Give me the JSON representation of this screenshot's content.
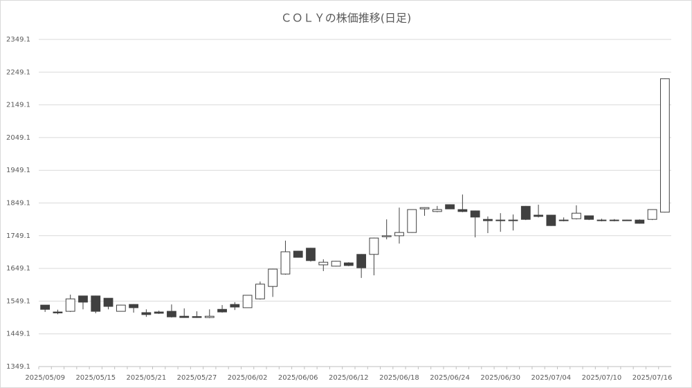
{
  "chart_data": {
    "type": "candlestick",
    "title": "ＣＯＬＹの株価推移(日足)",
    "categories": [
      "2025/05/09",
      null,
      null,
      null,
      "2025/05/15",
      null,
      null,
      null,
      "2025/05/21",
      null,
      null,
      null,
      "2025/05/27",
      null,
      null,
      null,
      "2025/06/02",
      null,
      null,
      null,
      "2025/06/06",
      null,
      null,
      null,
      "2025/06/12",
      null,
      null,
      null,
      "2025/06/18",
      null,
      null,
      null,
      "2025/06/24",
      null,
      null,
      null,
      "2025/06/30",
      null,
      null,
      null,
      "2025/07/04",
      null,
      null,
      null,
      "2025/07/10",
      null,
      null,
      null,
      "2025/07/16",
      null
    ],
    "open": [
      1537,
      1516,
      1518,
      1565,
      1565,
      1558,
      1518,
      1539,
      1514,
      1516,
      1518,
      1503,
      1502,
      1499,
      1524,
      1539,
      1529,
      1556,
      1594,
      1632,
      1702,
      1711,
      1660,
      1656,
      1666,
      1692,
      1692,
      1746,
      1749,
      1759,
      1831,
      1823,
      1844,
      1829,
      1825,
      1799,
      1797,
      1795,
      1839,
      1812,
      1812,
      1797,
      1801,
      1810,
      1797,
      1795,
      1797,
      1797,
      1799,
      1821
    ],
    "high": [
      1537,
      1523,
      1569,
      1565,
      1566,
      1558,
      1538,
      1540,
      1524,
      1520,
      1539,
      1527,
      1518,
      1524,
      1537,
      1546,
      1567,
      1609,
      1648,
      1734,
      1703,
      1712,
      1677,
      1672,
      1668,
      1693,
      1743,
      1799,
      1835,
      1830,
      1836,
      1840,
      1845,
      1875,
      1826,
      1808,
      1818,
      1814,
      1840,
      1844,
      1813,
      1805,
      1842,
      1811,
      1801,
      1800,
      1798,
      1799,
      1830,
      2230
    ],
    "low": [
      1516,
      1509,
      1516,
      1524,
      1512,
      1524,
      1518,
      1514,
      1501,
      1510,
      1499,
      1498,
      1498,
      1497,
      1514,
      1522,
      1529,
      1554,
      1562,
      1630,
      1682,
      1670,
      1641,
      1655,
      1656,
      1620,
      1628,
      1738,
      1725,
      1758,
      1810,
      1821,
      1830,
      1821,
      1744,
      1757,
      1761,
      1765,
      1797,
      1805,
      1779,
      1793,
      1799,
      1797,
      1793,
      1793,
      1795,
      1786,
      1797,
      1820
    ],
    "close": [
      1524,
      1513,
      1556,
      1546,
      1518,
      1533,
      1537,
      1529,
      1508,
      1512,
      1501,
      1499,
      1499,
      1503,
      1516,
      1531,
      1567,
      1601,
      1647,
      1700,
      1683,
      1673,
      1668,
      1671,
      1658,
      1651,
      1742,
      1749,
      1759,
      1829,
      1835,
      1829,
      1831,
      1823,
      1806,
      1795,
      1795,
      1797,
      1799,
      1808,
      1780,
      1795,
      1818,
      1799,
      1795,
      1797,
      1796,
      1787,
      1829,
      2229
    ],
    "up_color": "#ffffff",
    "down_color": "#404040",
    "edge_color": "#404040",
    "ylim": [
      1349.1,
      2349.1
    ],
    "yticks": [
      1349.1,
      1449.1,
      1549.1,
      1649.1,
      1749.1,
      1849.1,
      1949.1,
      2049.1,
      2149.1,
      2249.1,
      2349.1
    ],
    "grid": true
  }
}
